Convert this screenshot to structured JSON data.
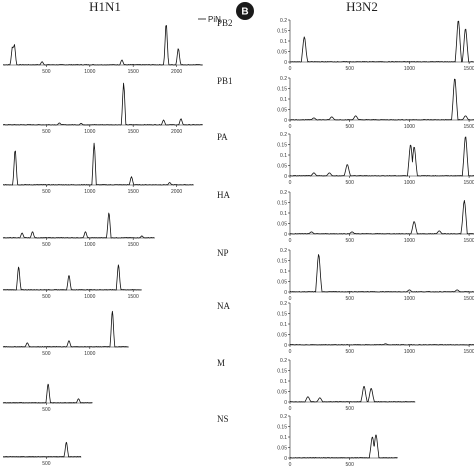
{
  "figure": {
    "left_title": "H1N1",
    "right_title": "H3N2",
    "panel_badge": "B",
    "legend_label": "PiN",
    "colors": {
      "trace": "#111111",
      "axis": "#222222",
      "badge": "#1a1a1a"
    }
  },
  "chart_data": [
    {
      "panel": "H1N1",
      "segment": "PB2",
      "type": "line",
      "xlim": [
        0,
        2300
      ],
      "xticks": [
        500,
        1000,
        1500,
        2000
      ],
      "peaks": [
        [
          110,
          0.45
        ],
        [
          130,
          0.5
        ],
        [
          450,
          0.08
        ],
        [
          1370,
          0.12
        ],
        [
          1880,
          1.0
        ],
        [
          2020,
          0.4
        ]
      ]
    },
    {
      "panel": "H1N1",
      "segment": "PB1",
      "type": "line",
      "xlim": [
        0,
        2300
      ],
      "xticks": [
        500,
        1000,
        1500,
        2000
      ],
      "peaks": [
        [
          650,
          0.05
        ],
        [
          900,
          0.04
        ],
        [
          1390,
          1.0
        ],
        [
          1850,
          0.12
        ],
        [
          2050,
          0.15
        ]
      ]
    },
    {
      "panel": "H1N1",
      "segment": "PA",
      "type": "line",
      "xlim": [
        0,
        2200
      ],
      "xticks": [
        500,
        1000,
        1500,
        2000
      ],
      "peaks": [
        [
          140,
          0.85
        ],
        [
          1050,
          1.0
        ],
        [
          1480,
          0.2
        ],
        [
          1920,
          0.06
        ]
      ]
    },
    {
      "panel": "H1N1",
      "segment": "HA",
      "type": "line",
      "xlim": [
        0,
        1750
      ],
      "xticks": [
        500,
        1000,
        1500
      ],
      "peaks": [
        [
          220,
          0.12
        ],
        [
          340,
          0.15
        ],
        [
          950,
          0.15
        ],
        [
          1220,
          0.6
        ],
        [
          1600,
          0.05
        ]
      ]
    },
    {
      "panel": "H1N1",
      "segment": "NP",
      "type": "line",
      "xlim": [
        0,
        1600
      ],
      "xticks": [
        500,
        1000,
        1500
      ],
      "peaks": [
        [
          180,
          0.55
        ],
        [
          760,
          0.35
        ],
        [
          1330,
          0.6
        ]
      ]
    },
    {
      "panel": "H1N1",
      "segment": "NA",
      "type": "line",
      "xlim": [
        0,
        1450
      ],
      "xticks": [
        500,
        1000
      ],
      "peaks": [
        [
          280,
          0.1
        ],
        [
          760,
          0.15
        ],
        [
          1260,
          0.85
        ]
      ]
    },
    {
      "panel": "H1N1",
      "segment": "M",
      "type": "line",
      "xlim": [
        0,
        1030
      ],
      "xticks": [
        500
      ],
      "peaks": [
        [
          520,
          0.45
        ],
        [
          870,
          0.1
        ]
      ]
    },
    {
      "panel": "H1N1",
      "segment": "NS",
      "type": "line",
      "xlim": [
        0,
        900
      ],
      "xticks": [
        500
      ],
      "peaks": [
        [
          730,
          0.35
        ]
      ]
    },
    {
      "panel": "H3N2",
      "segment": "PB2",
      "type": "line",
      "xlim": [
        0,
        1550
      ],
      "ylim": [
        0,
        0.2
      ],
      "xticks": [
        0,
        500,
        1000,
        1500
      ],
      "yticks": [
        0,
        0.05,
        0.1,
        0.15,
        0.2
      ],
      "peaks": [
        [
          120,
          0.12
        ],
        [
          1410,
          0.2
        ],
        [
          1470,
          0.16
        ]
      ]
    },
    {
      "panel": "H3N2",
      "segment": "PB1",
      "type": "line",
      "xlim": [
        0,
        1550
      ],
      "ylim": [
        0,
        0.2
      ],
      "xticks": [
        0,
        500,
        1000,
        1500
      ],
      "yticks": [
        0,
        0.05,
        0.1,
        0.15,
        0.2
      ],
      "peaks": [
        [
          200,
          0.01
        ],
        [
          350,
          0.015
        ],
        [
          550,
          0.02
        ],
        [
          1380,
          0.2
        ],
        [
          1470,
          0.02
        ]
      ]
    },
    {
      "panel": "H3N2",
      "segment": "PA",
      "type": "line",
      "xlim": [
        0,
        1550
      ],
      "ylim": [
        0,
        0.2
      ],
      "xticks": [
        0,
        500,
        1000,
        1500
      ],
      "yticks": [
        0,
        0.05,
        0.1,
        0.15,
        0.2
      ],
      "peaks": [
        [
          200,
          0.015
        ],
        [
          330,
          0.015
        ],
        [
          480,
          0.055
        ],
        [
          1010,
          0.15
        ],
        [
          1040,
          0.14
        ],
        [
          1470,
          0.19
        ]
      ]
    },
    {
      "panel": "H3N2",
      "segment": "HA",
      "type": "line",
      "xlim": [
        0,
        1550
      ],
      "ylim": [
        0,
        0.2
      ],
      "xticks": [
        0,
        500,
        1000,
        1500
      ],
      "yticks": [
        0,
        0.05,
        0.1,
        0.15,
        0.2
      ],
      "peaks": [
        [
          180,
          0.01
        ],
        [
          520,
          0.01
        ],
        [
          1040,
          0.06
        ],
        [
          1250,
          0.015
        ],
        [
          1460,
          0.16
        ]
      ]
    },
    {
      "panel": "H3N2",
      "segment": "NP",
      "type": "line",
      "xlim": [
        0,
        1550
      ],
      "ylim": [
        0,
        0.2
      ],
      "xticks": [
        0,
        500,
        1000,
        1500
      ],
      "yticks": [
        0,
        0.05,
        0.1,
        0.15,
        0.2
      ],
      "peaks": [
        [
          240,
          0.18
        ],
        [
          1000,
          0.01
        ],
        [
          1400,
          0.01
        ]
      ]
    },
    {
      "panel": "H3N2",
      "segment": "NA",
      "type": "line",
      "xlim": [
        0,
        1550
      ],
      "ylim": [
        0,
        0.2
      ],
      "xticks": [
        0,
        500,
        1000,
        1500
      ],
      "yticks": [
        0,
        0.05,
        0.1,
        0.15,
        0.2
      ],
      "peaks": [
        [
          800,
          0.006
        ]
      ]
    },
    {
      "panel": "H3N2",
      "segment": "M",
      "type": "line",
      "xlim": [
        0,
        1050
      ],
      "ylim": [
        0,
        0.2
      ],
      "xticks": [
        0,
        500
      ],
      "yticks": [
        0,
        0.05,
        0.1,
        0.15,
        0.2
      ],
      "peaks": [
        [
          150,
          0.025
        ],
        [
          250,
          0.02
        ],
        [
          620,
          0.075
        ],
        [
          680,
          0.065
        ]
      ]
    },
    {
      "panel": "H3N2",
      "segment": "NS",
      "type": "line",
      "xlim": [
        0,
        900
      ],
      "ylim": [
        0,
        0.2
      ],
      "xticks": [
        0,
        500
      ],
      "yticks": [
        0,
        0.05,
        0.1,
        0.15,
        0.2
      ],
      "peaks": [
        [
          690,
          0.1
        ],
        [
          720,
          0.11
        ]
      ]
    }
  ]
}
